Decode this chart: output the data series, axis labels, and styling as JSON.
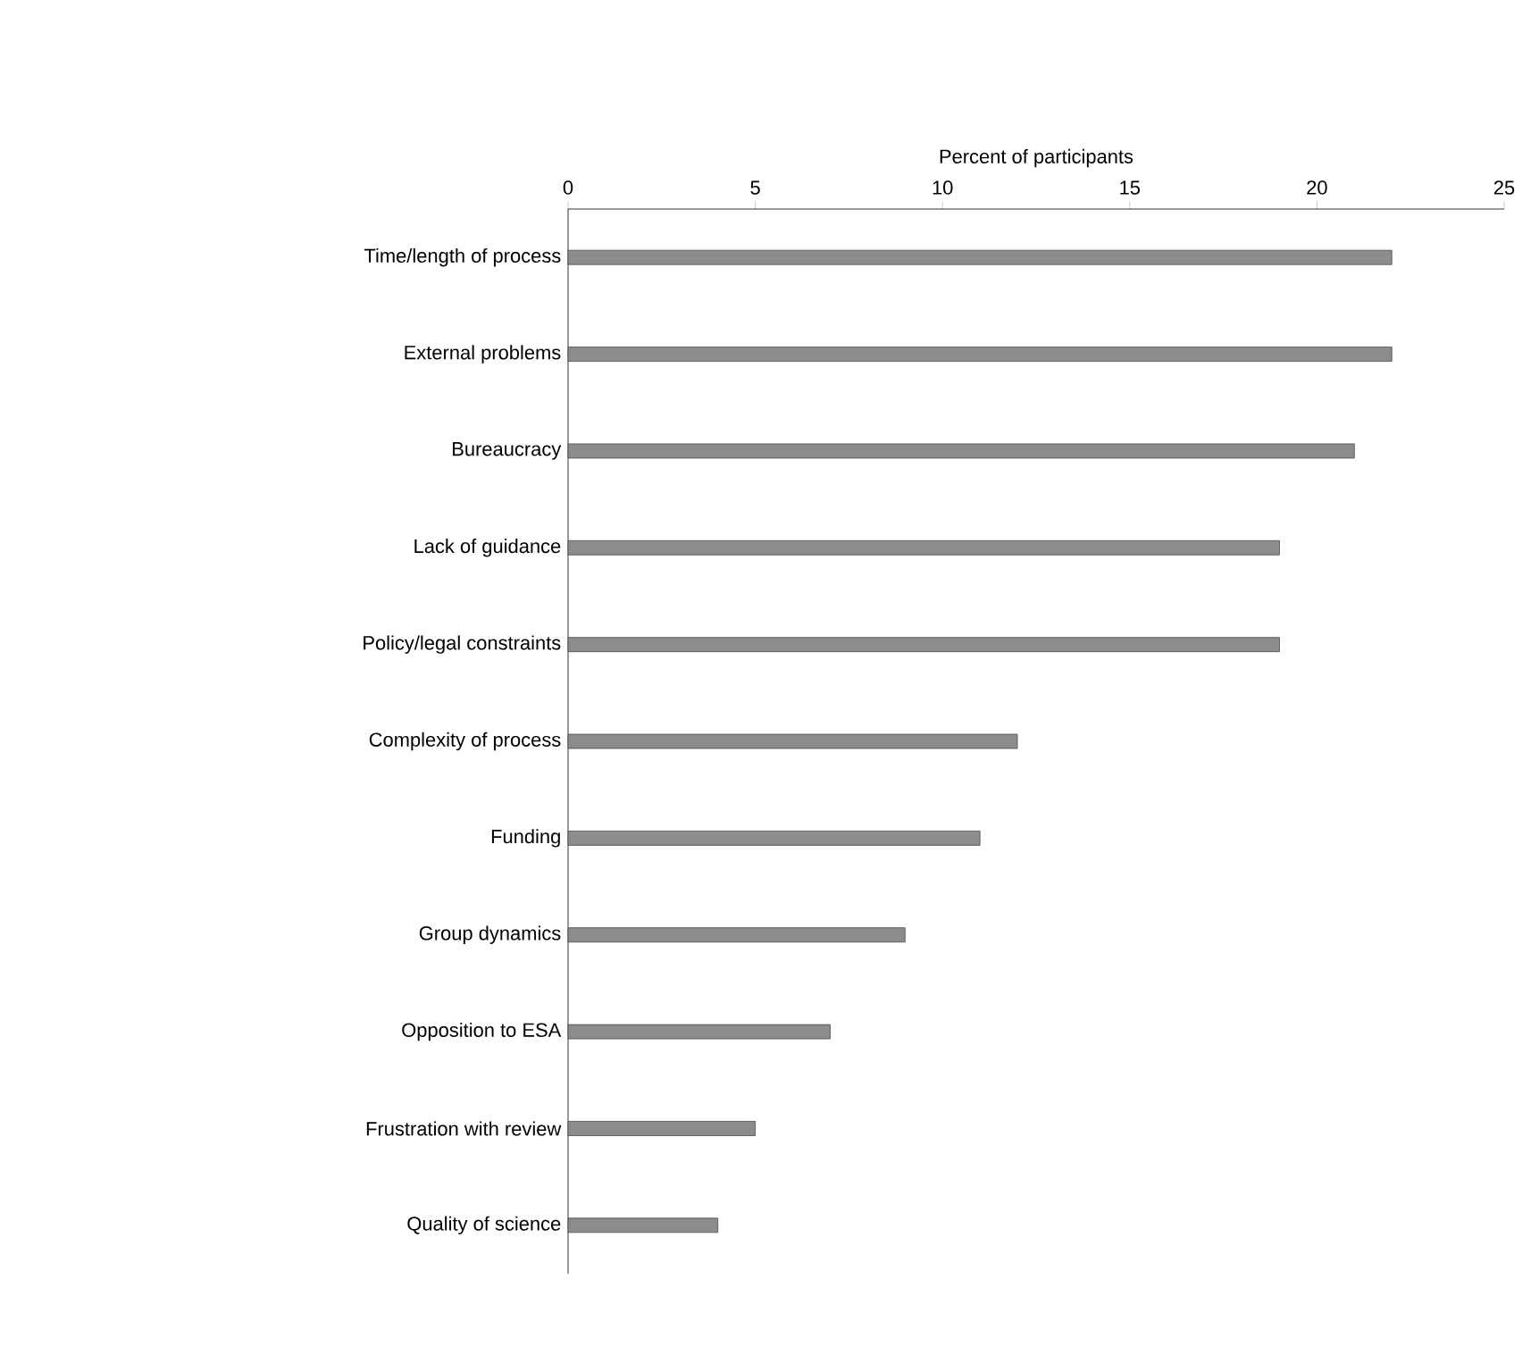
{
  "chart_data": {
    "type": "bar",
    "orientation": "horizontal",
    "xlabel": "Percent of participants",
    "categories": [
      "Time/length of process",
      "External problems",
      "Bureaucracy",
      "Lack of guidance",
      "Policy/legal constraints",
      "Complexity of process",
      "Funding",
      "Group dynamics",
      "Opposition to ESA",
      "Frustration with review",
      "Quality of science"
    ],
    "values": [
      22,
      22,
      21,
      19,
      19,
      12,
      11,
      9,
      7,
      5,
      4
    ],
    "color": "#8c8c8c",
    "xlim": [
      0,
      25
    ],
    "xticks": [
      0,
      5,
      10,
      15,
      20,
      25
    ]
  }
}
